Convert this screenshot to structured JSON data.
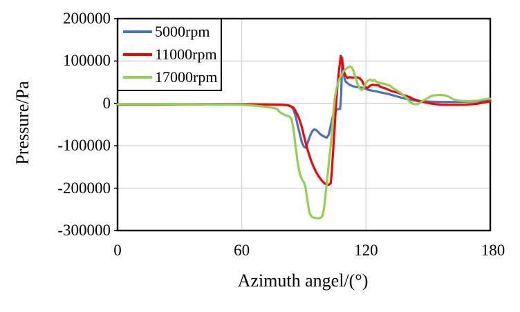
{
  "chart_data": {
    "type": "line",
    "title": "",
    "xlabel": "Azimuth angel/(°)",
    "ylabel": "Pressure/Pa",
    "xlim": [
      0,
      180
    ],
    "ylim": [
      -300000,
      200000
    ],
    "xticks": [
      0,
      60,
      120,
      180
    ],
    "yticks": [
      200000,
      100000,
      0,
      -100000,
      -200000,
      -300000
    ],
    "grid": true,
    "legend_position": "top-left-inside",
    "colors": {
      "grid": "#D9D9D9",
      "frame": "#000000",
      "text": "#000000",
      "background": "#FFFFFF"
    },
    "series": [
      {
        "name": "5000rpm",
        "color": "#4472C4",
        "points": [
          [
            0,
            -2000
          ],
          [
            10,
            -2000
          ],
          [
            20,
            -2000
          ],
          [
            30,
            -2000
          ],
          [
            40,
            -2000
          ],
          [
            50,
            -2000
          ],
          [
            60,
            -2000
          ],
          [
            70,
            -2500
          ],
          [
            78,
            -3000
          ],
          [
            82,
            -4000
          ],
          [
            84,
            -8000
          ],
          [
            85,
            -15000
          ],
          [
            86,
            -30000
          ],
          [
            87,
            -52000
          ],
          [
            88,
            -72000
          ],
          [
            89,
            -92000
          ],
          [
            90,
            -102000
          ],
          [
            91,
            -105000
          ],
          [
            92,
            -90000
          ],
          [
            93,
            -76000
          ],
          [
            94,
            -66000
          ],
          [
            95,
            -61000
          ],
          [
            96,
            -63000
          ],
          [
            97,
            -68000
          ],
          [
            98,
            -73000
          ],
          [
            99,
            -76000
          ],
          [
            100,
            -79000
          ],
          [
            101,
            -81000
          ],
          [
            102,
            -74000
          ],
          [
            103,
            -52000
          ],
          [
            104,
            -30000
          ],
          [
            105,
            -17000
          ],
          [
            106,
            -14000
          ],
          [
            107.5,
            -13000
          ],
          [
            108,
            20000
          ],
          [
            108.5,
            108000
          ],
          [
            109,
            85000
          ],
          [
            109.5,
            62000
          ],
          [
            110,
            52000
          ],
          [
            111,
            48000
          ],
          [
            112,
            44000
          ],
          [
            114,
            40000
          ],
          [
            116,
            38000
          ],
          [
            118,
            37000
          ],
          [
            119,
            36000
          ],
          [
            121,
            32000
          ],
          [
            123,
            30000
          ],
          [
            125,
            28500
          ],
          [
            127,
            26000
          ],
          [
            129,
            24000
          ],
          [
            131,
            22000
          ],
          [
            133,
            19000
          ],
          [
            136,
            15000
          ],
          [
            139,
            11000
          ],
          [
            142,
            8000
          ],
          [
            145,
            5500
          ],
          [
            148,
            4500
          ],
          [
            152,
            4000
          ],
          [
            156,
            3500
          ],
          [
            160,
            3500
          ],
          [
            164,
            3500
          ],
          [
            168,
            4000
          ],
          [
            172,
            4500
          ],
          [
            175,
            5000
          ],
          [
            178,
            6500
          ],
          [
            180,
            8000
          ]
        ]
      },
      {
        "name": "11000rpm",
        "color": "#FF0000",
        "points": [
          [
            0,
            -3000
          ],
          [
            10,
            -3000
          ],
          [
            20,
            -3000
          ],
          [
            30,
            -2500
          ],
          [
            40,
            -2500
          ],
          [
            50,
            -2500
          ],
          [
            60,
            -2500
          ],
          [
            70,
            -2500
          ],
          [
            76,
            -3000
          ],
          [
            80,
            -3500
          ],
          [
            83,
            -5000
          ],
          [
            85,
            -10000
          ],
          [
            86,
            -18000
          ],
          [
            87,
            -28000
          ],
          [
            88,
            -40000
          ],
          [
            89,
            -56000
          ],
          [
            90,
            -76000
          ],
          [
            91,
            -96000
          ],
          [
            92,
            -113000
          ],
          [
            93,
            -128000
          ],
          [
            94,
            -142000
          ],
          [
            95,
            -153000
          ],
          [
            96,
            -163000
          ],
          [
            97,
            -171000
          ],
          [
            98,
            -178000
          ],
          [
            99,
            -184000
          ],
          [
            100,
            -189000
          ],
          [
            101,
            -191000
          ],
          [
            102,
            -192000
          ],
          [
            103,
            -188000
          ],
          [
            103.5,
            -160000
          ],
          [
            104,
            -120000
          ],
          [
            104.7,
            -70000
          ],
          [
            105.3,
            -20000
          ],
          [
            106,
            30000
          ],
          [
            107,
            80000
          ],
          [
            107.8,
            112000
          ],
          [
            108.5,
            95000
          ],
          [
            109,
            80000
          ],
          [
            110,
            66000
          ],
          [
            111,
            60000
          ],
          [
            112,
            62000
          ],
          [
            113,
            61000
          ],
          [
            114,
            61000
          ],
          [
            115,
            62000
          ],
          [
            116,
            61000
          ],
          [
            117,
            59000
          ],
          [
            118,
            54000
          ],
          [
            119,
            44000
          ],
          [
            120,
            38000
          ],
          [
            120.7,
            36000
          ],
          [
            122,
            42000
          ],
          [
            123,
            44000
          ],
          [
            124,
            43500
          ],
          [
            126,
            43000
          ],
          [
            127,
            39000
          ],
          [
            129,
            36000
          ],
          [
            131,
            32000
          ],
          [
            133,
            28000
          ],
          [
            135,
            26000
          ],
          [
            137,
            22000
          ],
          [
            139,
            18000
          ],
          [
            141,
            15000
          ],
          [
            143,
            10000
          ],
          [
            145,
            7000
          ],
          [
            147,
            4000
          ],
          [
            149,
            2000
          ],
          [
            151,
            0
          ],
          [
            153,
            -1500
          ],
          [
            156,
            -3000
          ],
          [
            160,
            -3500
          ],
          [
            164,
            -3500
          ],
          [
            168,
            -3000
          ],
          [
            171,
            -2000
          ],
          [
            174,
            -500
          ],
          [
            177,
            2000
          ],
          [
            180,
            5000
          ]
        ]
      },
      {
        "name": "17000rpm",
        "color": "#92D050",
        "points": [
          [
            0,
            -2000
          ],
          [
            10,
            -2000
          ],
          [
            20,
            -2000
          ],
          [
            30,
            -2000
          ],
          [
            40,
            -2500
          ],
          [
            50,
            -3000
          ],
          [
            55,
            -3000
          ],
          [
            60,
            -3500
          ],
          [
            64,
            -4500
          ],
          [
            67,
            -5500
          ],
          [
            70,
            -7000
          ],
          [
            73,
            -9000
          ],
          [
            75,
            -10500
          ],
          [
            77,
            -13000
          ],
          [
            78,
            -19000
          ],
          [
            79,
            -23000
          ],
          [
            80,
            -25000
          ],
          [
            81,
            -28000
          ],
          [
            82,
            -29000
          ],
          [
            83,
            -31000
          ],
          [
            84,
            -36000
          ],
          [
            85,
            -62000
          ],
          [
            86,
            -102000
          ],
          [
            87,
            -140000
          ],
          [
            88,
            -165000
          ],
          [
            89,
            -179000
          ],
          [
            90,
            -186000
          ],
          [
            90.7,
            -196000
          ],
          [
            91.5,
            -222000
          ],
          [
            92.3,
            -248000
          ],
          [
            93,
            -262000
          ],
          [
            94,
            -268000
          ],
          [
            95,
            -270000
          ],
          [
            96,
            -271000
          ],
          [
            97,
            -271000
          ],
          [
            98,
            -270000
          ],
          [
            99,
            -266000
          ],
          [
            99.7,
            -248000
          ],
          [
            100.3,
            -225000
          ],
          [
            101,
            -190000
          ],
          [
            101.7,
            -158000
          ],
          [
            102.3,
            -128000
          ],
          [
            103,
            -98000
          ],
          [
            103.7,
            -60000
          ],
          [
            104.3,
            -18000
          ],
          [
            105,
            15000
          ],
          [
            106,
            40000
          ],
          [
            107,
            56000
          ],
          [
            108,
            67000
          ],
          [
            109,
            75000
          ],
          [
            110,
            80000
          ],
          [
            111,
            84000
          ],
          [
            112,
            87000
          ],
          [
            113,
            86000
          ],
          [
            114,
            76000
          ],
          [
            115,
            60000
          ],
          [
            116,
            45000
          ],
          [
            117,
            35000
          ],
          [
            118,
            31000
          ],
          [
            119,
            37000
          ],
          [
            120,
            49000
          ],
          [
            121,
            54000
          ],
          [
            122,
            56000
          ],
          [
            123,
            53000
          ],
          [
            124,
            55000
          ],
          [
            125.5,
            50000
          ],
          [
            127,
            48000
          ],
          [
            129,
            46000
          ],
          [
            130,
            44000
          ],
          [
            131.5,
            42000
          ],
          [
            133,
            36000
          ],
          [
            135,
            30000
          ],
          [
            137,
            24000
          ],
          [
            139,
            15000
          ],
          [
            140,
            10000
          ],
          [
            141,
            4000
          ],
          [
            142,
            500
          ],
          [
            143,
            -1500
          ],
          [
            144,
            -2500
          ],
          [
            145,
            -1500
          ],
          [
            146,
            1000
          ],
          [
            147,
            5000
          ],
          [
            149,
            10000
          ],
          [
            151,
            16000
          ],
          [
            152,
            18000
          ],
          [
            154,
            19500
          ],
          [
            156,
            20000
          ],
          [
            158,
            19000
          ],
          [
            160,
            16000
          ],
          [
            161,
            13000
          ],
          [
            162,
            10000
          ],
          [
            164,
            7000
          ],
          [
            166,
            6000
          ],
          [
            168,
            5500
          ],
          [
            170,
            5500
          ],
          [
            172,
            6000
          ],
          [
            174,
            6500
          ],
          [
            176,
            9000
          ],
          [
            178,
            10500
          ],
          [
            180,
            11000
          ]
        ]
      }
    ]
  }
}
